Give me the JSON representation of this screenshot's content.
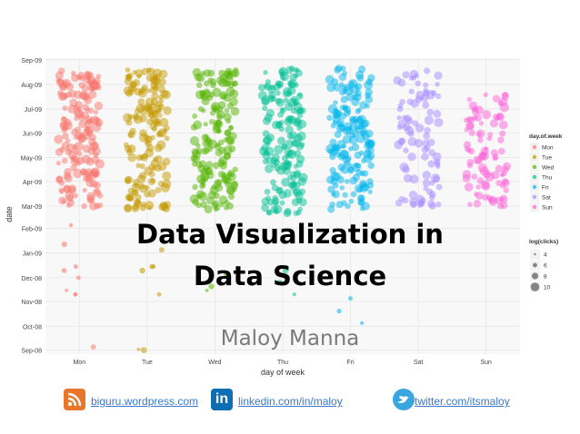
{
  "chart_data": {
    "type": "scatter",
    "title": "",
    "xlabel": "day of week",
    "ylabel": "date",
    "categories": [
      "Mon",
      "Tue",
      "Wed",
      "Thu",
      "Fri",
      "Sat",
      "Sun"
    ],
    "y_ticks": [
      "Sep-08",
      "Oct-08",
      "Nov-08",
      "Dec-08",
      "Jan-09",
      "Feb-09",
      "Mar-09",
      "Apr-09",
      "May-09",
      "Jun-09",
      "Jul-09",
      "Aug-09",
      "Sep-09"
    ],
    "ylim": [
      "2008-08-27",
      "2009-09-03"
    ],
    "grid": true,
    "jitter": true,
    "colors": {
      "Mon": "#f8766d",
      "Tue": "#c49a00",
      "Wed": "#53b400",
      "Thu": "#00c094",
      "Fri": "#00b6eb",
      "Sat": "#a58aff",
      "Sun": "#fb61d7"
    },
    "legend_color": {
      "title": "day.of.week",
      "items": [
        "Mon",
        "Tue",
        "Wed",
        "Thu",
        "Fri",
        "Sat",
        "Sun"
      ],
      "position": "right"
    },
    "legend_size": {
      "title": "log(clicks)",
      "items": [
        "4",
        "6",
        "8",
        "10"
      ],
      "position": "right"
    },
    "series": [
      {
        "name": "Mon",
        "dense_from": "2009-03-01",
        "dense_to": "2009-08-20",
        "sparse": [
          {
            "x": "Mon",
            "y": "2008-09-05"
          },
          {
            "x": "Mon",
            "y": "2008-11-10"
          },
          {
            "x": "Mon",
            "y": "2008-11-10"
          },
          {
            "x": "Mon",
            "y": "2008-11-15"
          },
          {
            "x": "Mon",
            "y": "2008-12-01"
          },
          {
            "x": "Mon",
            "y": "2008-12-10"
          },
          {
            "x": "Mon",
            "y": "2008-12-15"
          },
          {
            "x": "Mon",
            "y": "2009-01-12"
          },
          {
            "x": "Mon",
            "y": "2009-02-05"
          }
        ]
      },
      {
        "name": "Tue",
        "dense_from": "2009-02-25",
        "dense_to": "2009-08-20",
        "sparse": [
          {
            "x": "Tue",
            "y": "2008-09-01"
          },
          {
            "x": "Tue",
            "y": "2008-09-02"
          },
          {
            "x": "Tue",
            "y": "2008-11-10"
          },
          {
            "x": "Tue",
            "y": "2008-12-10"
          },
          {
            "x": "Tue",
            "y": "2008-12-15"
          },
          {
            "x": "Tue",
            "y": "2008-12-15"
          },
          {
            "x": "Tue",
            "y": "2009-01-05"
          }
        ]
      },
      {
        "name": "Wed",
        "dense_from": "2009-02-25",
        "dense_to": "2009-08-20",
        "sparse": [
          {
            "x": "Wed",
            "y": "2008-11-15"
          },
          {
            "x": "Wed",
            "y": "2008-11-20"
          },
          {
            "x": "Wed",
            "y": "2008-12-05"
          }
        ]
      },
      {
        "name": "Thu",
        "dense_from": "2009-02-20",
        "dense_to": "2009-08-22",
        "sparse": [
          {
            "x": "Thu",
            "y": "2008-11-10"
          },
          {
            "x": "Thu",
            "y": "2008-11-25"
          },
          {
            "x": "Thu",
            "y": "2008-12-10"
          },
          {
            "x": "Thu",
            "y": "2008-12-15"
          }
        ]
      },
      {
        "name": "Fri",
        "dense_from": "2009-02-25",
        "dense_to": "2009-08-22",
        "sparse": [
          {
            "x": "Fri",
            "y": "2008-10-05"
          },
          {
            "x": "Fri",
            "y": "2008-10-20"
          },
          {
            "x": "Fri",
            "y": "2008-11-05"
          }
        ]
      },
      {
        "name": "Sat",
        "dense_from": "2009-03-01",
        "dense_to": "2009-08-20",
        "sparse": []
      },
      {
        "name": "Sun",
        "dense_from": "2009-03-01",
        "dense_to": "2009-07-25",
        "sparse": []
      }
    ]
  },
  "slide": {
    "title_line1": "Data Visualization in",
    "title_line2": "Data Science",
    "author": "Maloy Manna"
  },
  "footer": {
    "blog": "biguru.wordpress.com",
    "linkedin": "linkedin.com/in/maloy",
    "twitter": "twitter.com/itsmaloy",
    "blog_icon": "rss-icon",
    "linkedin_icon": "linkedin-icon",
    "twitter_icon": "twitter-bird-icon"
  }
}
